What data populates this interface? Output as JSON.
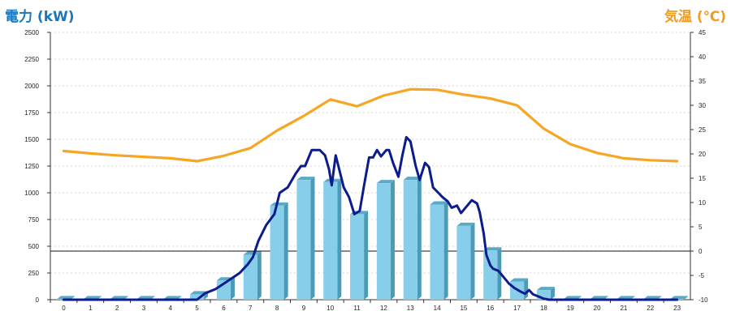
{
  "chart_data": {
    "type": "bar+line",
    "left_axis": {
      "label": "電力 (kW)",
      "min": 0,
      "max": 2500,
      "ticks": [
        0,
        250,
        500,
        750,
        1000,
        1250,
        1500,
        1750,
        2000,
        2250,
        2500
      ]
    },
    "right_axis": {
      "label": "気温 (℃)",
      "min": -10,
      "max": 45,
      "ticks": [
        -10,
        -5,
        0,
        5,
        10,
        15,
        20,
        25,
        30,
        35,
        40,
        45
      ]
    },
    "categories": [
      0,
      1,
      2,
      3,
      4,
      5,
      6,
      7,
      8,
      9,
      10,
      11,
      12,
      13,
      14,
      15,
      16,
      17,
      18,
      19,
      20,
      21,
      22,
      23
    ],
    "series": [
      {
        "kind": "bar",
        "axis": "left",
        "values": [
          5,
          5,
          5,
          5,
          5,
          50,
          180,
          420,
          880,
          1120,
          1100,
          800,
          1090,
          1120,
          890,
          690,
          460,
          170,
          90,
          5,
          5,
          5,
          5,
          5
        ]
      },
      {
        "kind": "line",
        "axis": "left",
        "x": [
          0,
          0.5,
          1,
          1.5,
          2,
          2.5,
          3,
          3.5,
          4,
          4.5,
          5,
          5.3,
          5.7,
          6,
          6.3,
          6.6,
          6.9,
          7.1,
          7.3,
          7.6,
          7.9,
          8.1,
          8.4,
          8.7,
          8.9,
          9.05,
          9.3,
          9.6,
          9.8,
          9.95,
          10.05,
          10.2,
          10.5,
          10.7,
          10.9,
          11.1,
          11.25,
          11.45,
          11.6,
          11.75,
          11.9,
          12.1,
          12.2,
          12.35,
          12.55,
          12.7,
          12.85,
          13.0,
          13.2,
          13.35,
          13.55,
          13.7,
          13.85,
          14.05,
          14.2,
          14.4,
          14.55,
          14.75,
          14.9,
          15.1,
          15.3,
          15.5,
          15.6,
          15.75,
          15.85,
          16.0,
          16.1,
          16.3,
          16.5,
          16.7,
          16.9,
          17.1,
          17.3,
          17.45,
          17.6,
          17.8,
          18.0,
          18.2,
          18.5,
          19,
          20,
          21,
          22,
          23
        ],
        "values": [
          0,
          0,
          0,
          0,
          0,
          0,
          0,
          0,
          0,
          0,
          0,
          60,
          100,
          150,
          200,
          250,
          330,
          400,
          550,
          700,
          800,
          1000,
          1050,
          1180,
          1250,
          1250,
          1400,
          1400,
          1350,
          1220,
          1070,
          1350,
          1050,
          960,
          800,
          830,
          1050,
          1330,
          1330,
          1400,
          1340,
          1400,
          1400,
          1280,
          1150,
          1350,
          1520,
          1480,
          1250,
          1120,
          1280,
          1240,
          1050,
          1000,
          960,
          920,
          860,
          880,
          810,
          870,
          930,
          900,
          820,
          620,
          420,
          320,
          290,
          270,
          210,
          150,
          110,
          80,
          55,
          90,
          50,
          30,
          10,
          0,
          0,
          0,
          0,
          0,
          0,
          0
        ]
      },
      {
        "kind": "line",
        "axis": "right",
        "x": [
          0,
          1,
          2,
          3,
          4,
          5,
          6,
          7,
          8,
          9,
          10,
          11,
          12,
          13,
          14,
          15,
          16,
          17,
          18,
          19,
          20,
          21,
          22,
          23
        ],
        "values": [
          20.6,
          20.1,
          19.7,
          19.4,
          19.1,
          18.5,
          19.6,
          21.2,
          24.8,
          27.8,
          31.2,
          29.8,
          32.0,
          33.3,
          33.2,
          32.2,
          31.4,
          30.0,
          25.2,
          22.0,
          20.2,
          19.1,
          18.7,
          18.5
        ]
      }
    ],
    "grid": "horizontal dashed",
    "legend": "none",
    "colors": {
      "bar": "#87ceeb",
      "bar_side": "#4a9ab8",
      "bar_top": "#5aa9c6",
      "power_line": "#0b1c8c",
      "temp_line": "#f5a623",
      "left_title": "#1a76bd",
      "right_title": "#f39a1e"
    }
  }
}
